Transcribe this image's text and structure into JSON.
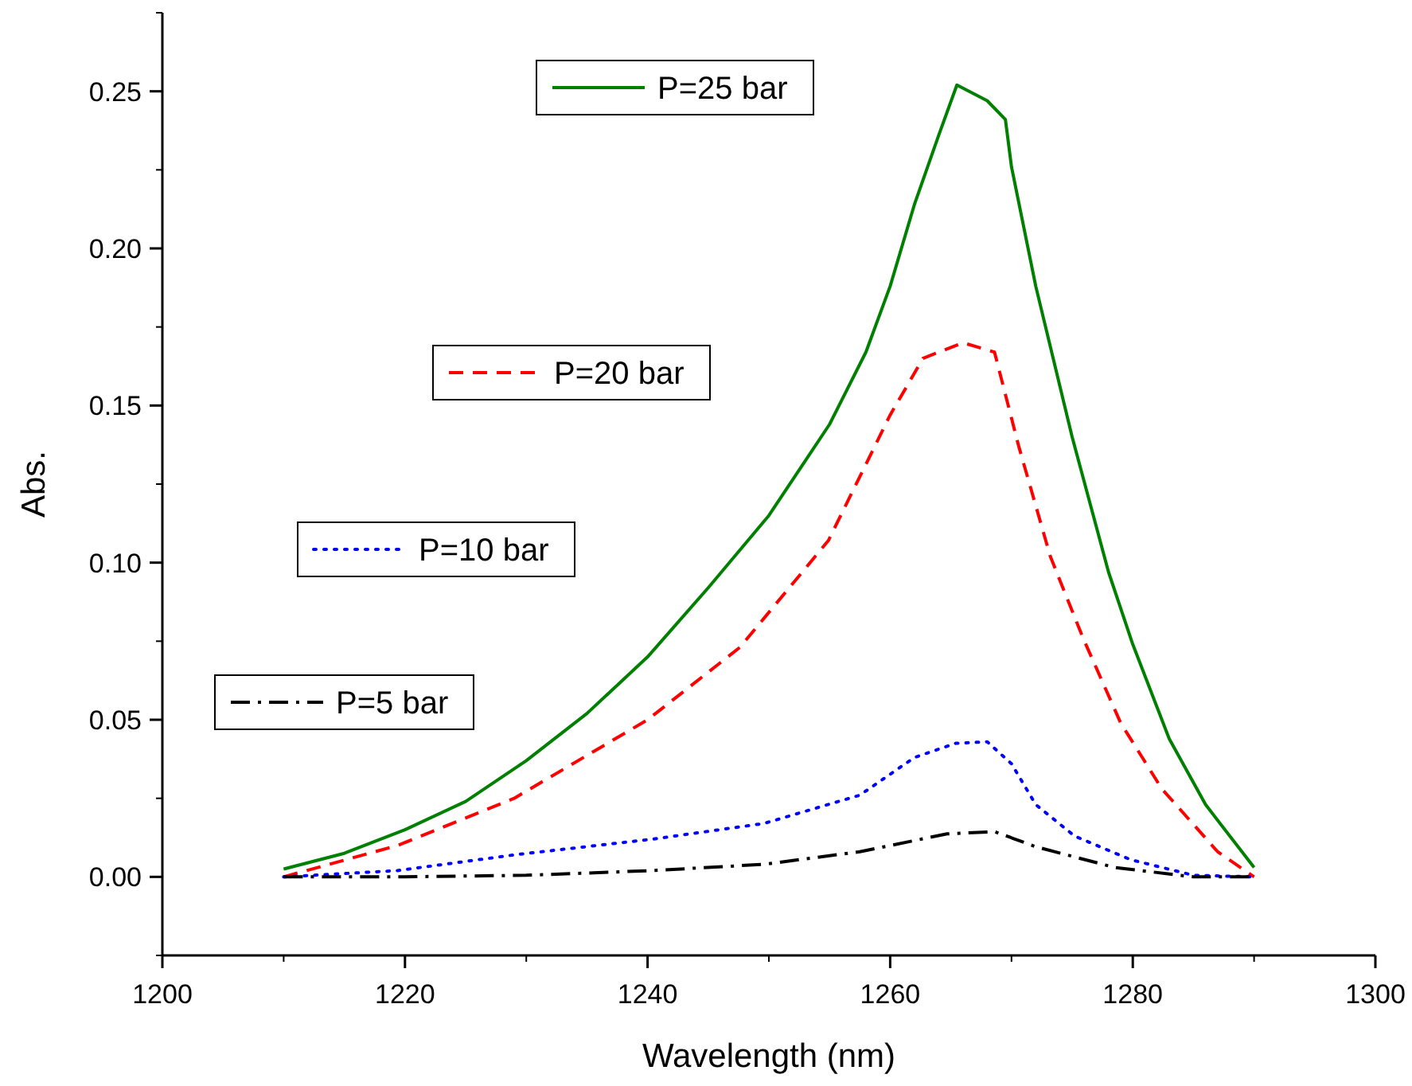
{
  "chart_data": {
    "type": "line",
    "xlabel": "Wavelength (nm)",
    "ylabel": "Abs.",
    "xlim": [
      1200,
      1300
    ],
    "xticks": [
      1200,
      1220,
      1240,
      1260,
      1280,
      1300
    ],
    "ylim": [
      -0.025,
      0.275
    ],
    "yticks": [
      {
        "value": 0,
        "label": "0.00"
      },
      {
        "value": 0.05,
        "label": "0.05"
      },
      {
        "value": 0.1,
        "label": "0.10"
      },
      {
        "value": 0.15,
        "label": "0.15"
      },
      {
        "value": 0.2,
        "label": "0.20"
      },
      {
        "value": 0.25,
        "label": "0.25"
      }
    ],
    "grid": false,
    "legend": "top left",
    "marker": "none",
    "series": [
      {
        "name": "P=25 bar",
        "color": "#008000",
        "line_style": "solid",
        "x": [
          1210,
          1215,
          1220,
          1225,
          1230,
          1235,
          1240,
          1245,
          1250,
          1255,
          1258,
          1260,
          1262,
          1264,
          1265.5,
          1268,
          1269.5,
          1270,
          1272,
          1275,
          1278,
          1280,
          1283,
          1286,
          1290
        ],
        "values": [
          0.0025,
          0.0075,
          0.015,
          0.024,
          0.037,
          0.052,
          0.07,
          0.092,
          0.115,
          0.144,
          0.167,
          0.188,
          0.214,
          0.236,
          0.252,
          0.247,
          0.241,
          0.226,
          0.188,
          0.14,
          0.097,
          0.074,
          0.044,
          0.023,
          0.003
        ]
      },
      {
        "name": "P=20 bar",
        "color": "#ff0000",
        "line_style": "dashed",
        "x": [
          1210,
          1219.4,
          1229,
          1240,
          1247.6,
          1254.9,
          1260,
          1262.7,
          1266,
          1268.6,
          1270.6,
          1273.2,
          1275.9,
          1279,
          1282.4,
          1287,
          1290
        ],
        "values": [
          0,
          0.01,
          0.025,
          0.05,
          0.073,
          0.107,
          0.147,
          0.165,
          0.17,
          0.167,
          0.137,
          0.102,
          0.076,
          0.049,
          0.028,
          0.008,
          0
        ]
      },
      {
        "name": "P=10 bar",
        "color": "#0000ff",
        "line_style": "dotted",
        "x": [
          1210,
          1219.4,
          1229,
          1240.4,
          1249.6,
          1257.5,
          1262,
          1265.4,
          1268,
          1270,
          1272,
          1275.2,
          1279.8,
          1285,
          1290
        ],
        "values": [
          0,
          0.002,
          0.007,
          0.012,
          0.017,
          0.026,
          0.038,
          0.0425,
          0.043,
          0.036,
          0.023,
          0.013,
          0.0055,
          0.0005,
          0
        ]
      },
      {
        "name": "P=5 bar",
        "color": "#000000",
        "line_style": "dashdot",
        "x": [
          1210,
          1219.4,
          1230,
          1240.4,
          1249.6,
          1257.5,
          1264.7,
          1268.6,
          1272,
          1278.5,
          1285,
          1290
        ],
        "values": [
          0,
          0,
          0.0005,
          0.002,
          0.004,
          0.008,
          0.0137,
          0.0144,
          0.0096,
          0.003,
          0,
          0
        ]
      }
    ]
  }
}
